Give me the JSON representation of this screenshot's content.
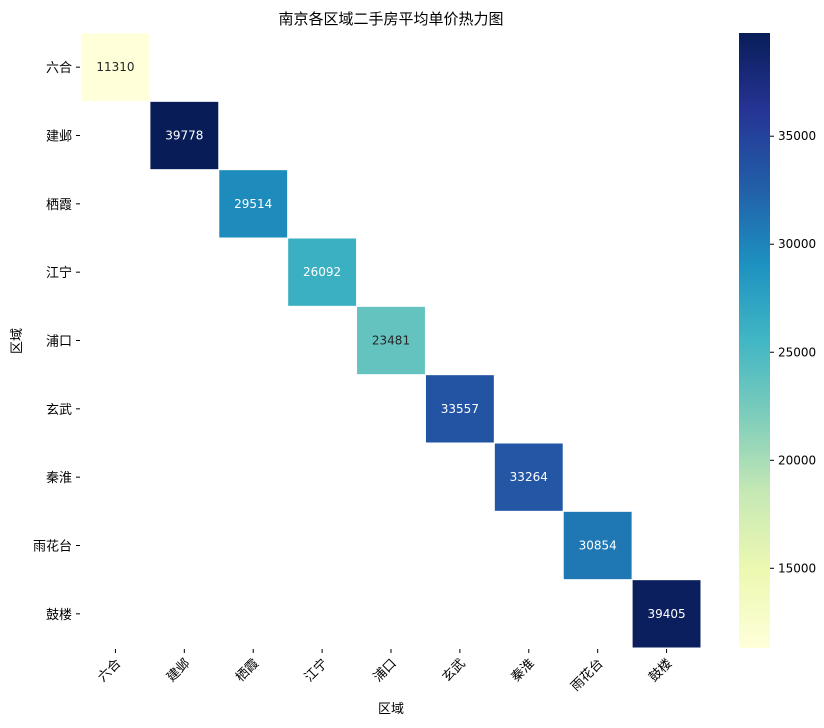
{
  "chart_data": {
    "type": "heatmap",
    "title": "南京各区域二手房平均单价热力图",
    "xlabel": "区域",
    "ylabel": "区域",
    "categories": [
      "六合",
      "建邺",
      "栖霞",
      "江宁",
      "浦口",
      "玄武",
      "秦淮",
      "雨花台",
      "鼓楼"
    ],
    "cells": [
      {
        "row": "六合",
        "col": "六合",
        "value": 11310
      },
      {
        "row": "建邺",
        "col": "建邺",
        "value": 39778
      },
      {
        "row": "栖霞",
        "col": "栖霞",
        "value": 29514
      },
      {
        "row": "江宁",
        "col": "江宁",
        "value": 26092
      },
      {
        "row": "浦口",
        "col": "浦口",
        "value": 23481
      },
      {
        "row": "玄武",
        "col": "玄武",
        "value": 33557
      },
      {
        "row": "秦淮",
        "col": "秦淮",
        "value": 33264
      },
      {
        "row": "雨花台",
        "col": "雨花台",
        "value": 30854
      },
      {
        "row": "鼓楼",
        "col": "鼓楼",
        "value": 39405
      }
    ],
    "colormap": "YlGnBu",
    "colormap_stops": [
      "#ffffd9",
      "#edf8b1",
      "#c7e9b4",
      "#7fcdbb",
      "#41b6c4",
      "#1d91c0",
      "#225ea8",
      "#253494",
      "#081d58"
    ],
    "vmin": 11310,
    "vmax": 39778,
    "colorbar_ticks": [
      15000,
      20000,
      25000,
      30000,
      35000
    ],
    "annotations": true,
    "grid": false
  }
}
